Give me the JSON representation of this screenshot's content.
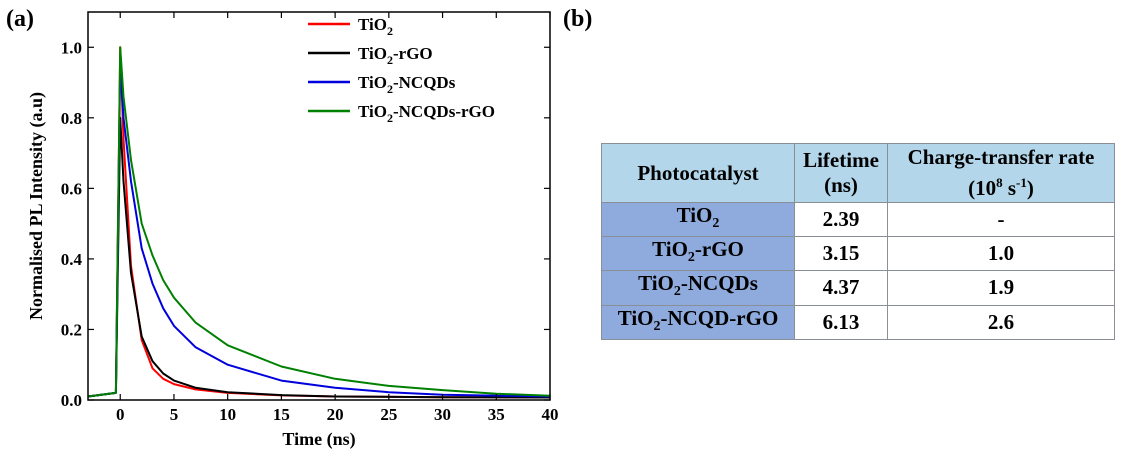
{
  "panel_a_label": "(a)",
  "panel_b_label": "(b)",
  "chart_data": {
    "type": "line",
    "xlabel": "Time (ns)",
    "ylabel": "Normalised PL Intensity (a.u)",
    "xlim": [
      -3,
      40
    ],
    "ylim": [
      0,
      1.1
    ],
    "xticks": [
      0,
      5,
      10,
      15,
      20,
      25,
      30,
      35,
      40
    ],
    "yticks": [
      0.0,
      0.2,
      0.4,
      0.6,
      0.8,
      1.0
    ],
    "legend_position": "top-right",
    "series": [
      {
        "name_base": "TiO",
        "name_sub": "2",
        "name_rest": "",
        "color": "#ff0000",
        "x": [
          -3,
          -0.4,
          0,
          0.3,
          1,
          2,
          3,
          4,
          5,
          7,
          10,
          15,
          20,
          30,
          40
        ],
        "y": [
          0.01,
          0.02,
          1.0,
          0.74,
          0.38,
          0.17,
          0.09,
          0.06,
          0.045,
          0.03,
          0.02,
          0.013,
          0.01,
          0.008,
          0.008
        ]
      },
      {
        "name_base": "TiO",
        "name_sub": "2",
        "name_rest": "-rGO",
        "color": "#000000",
        "x": [
          -3,
          -0.4,
          0,
          0.3,
          1,
          2,
          3,
          4,
          5,
          7,
          10,
          15,
          20,
          30,
          40
        ],
        "y": [
          0.01,
          0.02,
          0.8,
          0.62,
          0.36,
          0.18,
          0.11,
          0.075,
          0.055,
          0.035,
          0.022,
          0.014,
          0.01,
          0.008,
          0.007
        ]
      },
      {
        "name_base": "TiO",
        "name_sub": "2",
        "name_rest": "-NCQDs",
        "color": "#0000dd",
        "x": [
          -3,
          -0.4,
          0,
          0.3,
          1,
          2,
          3,
          4,
          5,
          7,
          10,
          15,
          20,
          25,
          30,
          40
        ],
        "y": [
          0.01,
          0.02,
          0.95,
          0.8,
          0.62,
          0.43,
          0.33,
          0.26,
          0.21,
          0.15,
          0.1,
          0.055,
          0.035,
          0.022,
          0.015,
          0.01
        ]
      },
      {
        "name_base": "TiO",
        "name_sub": "2",
        "name_rest": "-NCQDs-rGO",
        "color": "#008000",
        "x": [
          -3,
          -0.4,
          0,
          0.3,
          1,
          2,
          3,
          4,
          5,
          7,
          10,
          15,
          20,
          25,
          30,
          35,
          40
        ],
        "y": [
          0.01,
          0.02,
          1.0,
          0.86,
          0.68,
          0.5,
          0.41,
          0.34,
          0.29,
          0.22,
          0.155,
          0.095,
          0.06,
          0.04,
          0.028,
          0.018,
          0.012
        ]
      }
    ]
  },
  "table": {
    "headers": [
      {
        "line1": "Photocatalyst",
        "line2": ""
      },
      {
        "line1": "Lifetime",
        "line2": "(ns)"
      },
      {
        "line1": "Charge-transfer rate",
        "line2_a": "(10",
        "line2_sup1": "8",
        "line2_b": " s",
        "line2_sup2": "-1",
        "line2_c": ")"
      }
    ],
    "rows": [
      {
        "name_base": "TiO",
        "name_sub": "2",
        "name_rest": "",
        "lifetime": "2.39",
        "rate": "-"
      },
      {
        "name_base": "TiO",
        "name_sub": "2",
        "name_rest": "-rGO",
        "lifetime": "3.15",
        "rate": "1.0"
      },
      {
        "name_base": "TiO",
        "name_sub": "2",
        "name_rest": "-NCQDs",
        "lifetime": "4.37",
        "rate": "1.9"
      },
      {
        "name_base": "TiO",
        "name_sub": "2",
        "name_rest": "-NCQD-rGO",
        "lifetime": "6.13",
        "rate": "2.6"
      }
    ]
  }
}
